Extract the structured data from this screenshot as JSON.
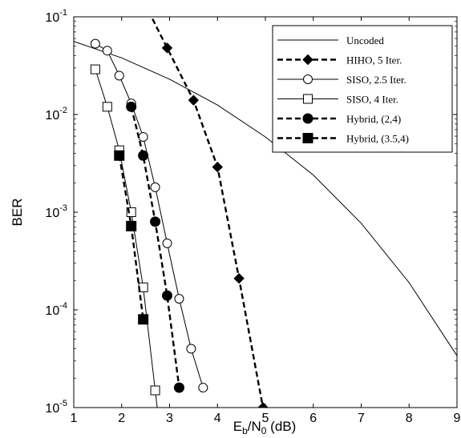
{
  "chart_data": {
    "type": "line",
    "title": "",
    "xlabel": "E_b/N_0 (dB)",
    "ylabel": "BER",
    "xlim": [
      1,
      9
    ],
    "ylim": [
      1e-05,
      0.1
    ],
    "yscale": "log",
    "grid": false,
    "legend_position": "top-right",
    "x_ticks": [
      "1",
      "2",
      "3",
      "4",
      "5",
      "6",
      "7",
      "8",
      "9"
    ],
    "y_ticks": [
      {
        "base": "10",
        "exp": "-1",
        "value": 0.1
      },
      {
        "base": "10",
        "exp": "-2",
        "value": 0.01
      },
      {
        "base": "10",
        "exp": "-3",
        "value": 0.001
      },
      {
        "base": "10",
        "exp": "-4",
        "value": 0.0001
      },
      {
        "base": "10",
        "exp": "-5",
        "value": 1e-05
      }
    ],
    "series": [
      {
        "name": "Uncoded",
        "marker": "none",
        "dashed": false,
        "x": [
          1,
          2,
          3,
          4,
          5,
          6,
          7,
          8,
          9
        ],
        "y": [
          0.056,
          0.038,
          0.023,
          0.0125,
          0.0059,
          0.0024,
          0.00077,
          0.00019,
          3.4e-05
        ]
      },
      {
        "name": "HIHO, 5 Iter.",
        "marker": "diamond",
        "dashed": true,
        "x": [
          2.95,
          3.5,
          4.0,
          4.45,
          4.95
        ],
        "y": [
          0.048,
          0.014,
          0.0029,
          0.00021,
          1e-05
        ]
      },
      {
        "name": "SISO, 2.5 Iter.",
        "marker": "circle-open",
        "dashed": false,
        "x": [
          1.45,
          1.7,
          1.95,
          2.2,
          2.45,
          2.7,
          2.95,
          3.2,
          3.45,
          3.7
        ],
        "y": [
          0.053,
          0.045,
          0.025,
          0.013,
          0.0059,
          0.0018,
          0.00048,
          0.00013,
          4e-05,
          1.6e-05
        ]
      },
      {
        "name": "SISO, 4 Iter.",
        "marker": "square-open",
        "dashed": false,
        "x": [
          1.45,
          1.7,
          1.95,
          2.2,
          2.45,
          2.7
        ],
        "y": [
          0.029,
          0.012,
          0.0043,
          0.001,
          0.00017,
          1.5e-05
        ]
      },
      {
        "name": "Hybrid, (2,4)",
        "marker": "circle-filled",
        "dashed": true,
        "x": [
          2.2,
          2.45,
          2.7,
          2.95,
          3.2
        ],
        "y": [
          0.012,
          0.0038,
          0.0008,
          0.00014,
          1.6e-05
        ]
      },
      {
        "name": "Hybrid, (3.5,4)",
        "marker": "square-filled",
        "dashed": true,
        "x": [
          1.95,
          2.2,
          2.45
        ],
        "y": [
          0.0038,
          0.00072,
          8e-05
        ]
      }
    ]
  }
}
